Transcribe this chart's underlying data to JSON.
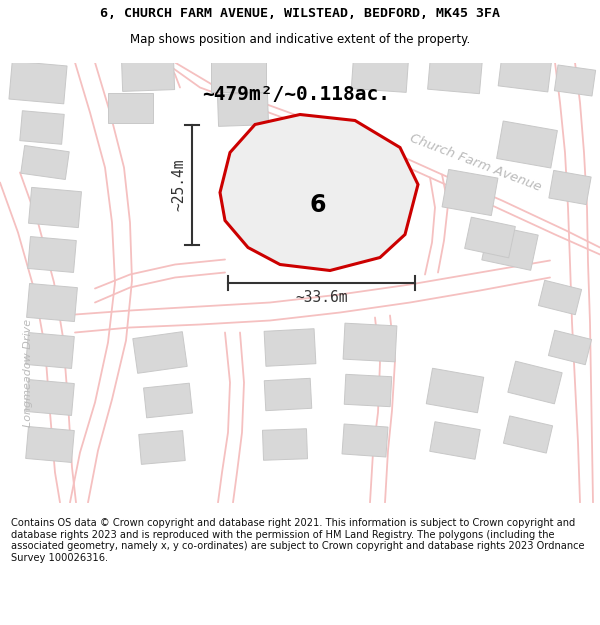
{
  "title_line1": "6, CHURCH FARM AVENUE, WILSTEAD, BEDFORD, MK45 3FA",
  "title_line2": "Map shows position and indicative extent of the property.",
  "area_text": "~479m²/~0.118ac.",
  "label_number": "6",
  "dim_width": "~33.6m",
  "dim_height": "~25.4m",
  "street_label": "Church Farm Avenue",
  "street_label2": "Longmeadow Drive",
  "footer_text": "Contains OS data © Crown copyright and database right 2021. This information is subject to Crown copyright and database rights 2023 and is reproduced with the permission of HM Land Registry. The polygons (including the associated geometry, namely x, y co-ordinates) are subject to Crown copyright and database rights 2023 Ordnance Survey 100026316.",
  "map_bg": "#f5f5f5",
  "plot_fill": "#eeeeee",
  "plot_edge": "#cc0000",
  "road_color": "#f5c0c0",
  "road_fill": "#f8e8e8",
  "building_color": "#d8d8d8",
  "bldg_edge": "#c8c8c8",
  "title_color": "#000000",
  "footer_color": "#111111",
  "street_color": "#bbbbbb",
  "dim_color": "#333333"
}
